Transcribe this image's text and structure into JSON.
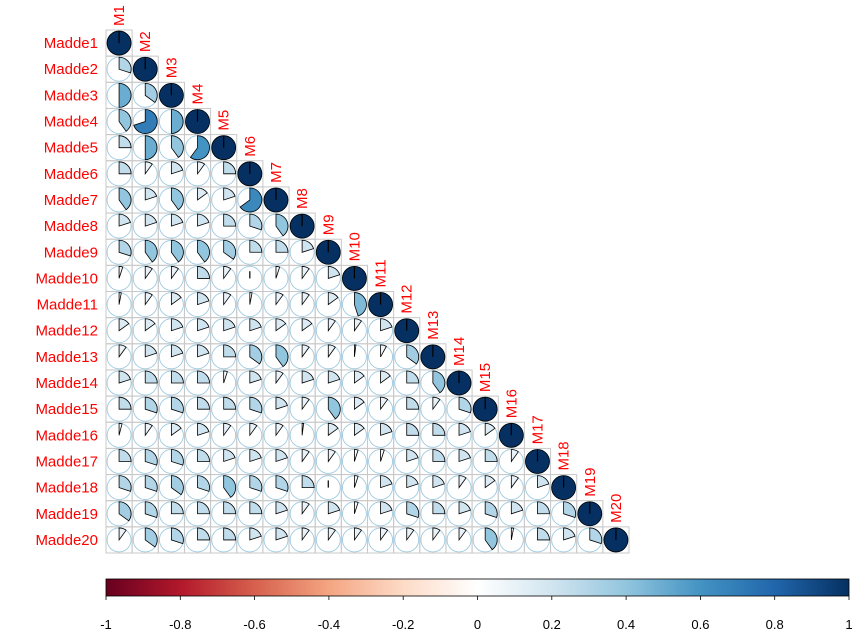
{
  "chart_data": {
    "type": "heatmap",
    "style": "lower-triangle correlogram, pie glyphs",
    "row_labels": [
      "Madde1",
      "Madde2",
      "Madde3",
      "Madde4",
      "Madde5",
      "Madde6",
      "Madde7",
      "Madde8",
      "Madde9",
      "Madde10",
      "Madde11",
      "Madde12",
      "Madde13",
      "Madde14",
      "Madde15",
      "Madde16",
      "Madde17",
      "Madde18",
      "Madde19",
      "Madde20"
    ],
    "col_labels": [
      "M1",
      "M2",
      "M3",
      "M4",
      "M5",
      "M6",
      "M7",
      "M8",
      "M9",
      "M10",
      "M11",
      "M12",
      "M13",
      "M14",
      "M15",
      "M16",
      "M17",
      "M18",
      "M19",
      "M20"
    ],
    "label_color": "#ff0000",
    "colorbar": {
      "range": [
        -1,
        1
      ],
      "ticks": [
        "-1",
        "-0.8",
        "-0.6",
        "-0.4",
        "-0.2",
        "0",
        "0.2",
        "0.4",
        "0.6",
        "0.8",
        "1"
      ],
      "colors": [
        "#67001F",
        "#B2182B",
        "#D6604D",
        "#F4A582",
        "#FDDBC7",
        "#FFFFFF",
        "#D1E5F0",
        "#92C5DE",
        "#4393C3",
        "#2166AC",
        "#053061"
      ]
    },
    "matrix": [
      [
        1
      ],
      [
        0.3,
        1
      ],
      [
        0.5,
        0.35,
        1
      ],
      [
        0.4,
        0.7,
        0.5,
        1
      ],
      [
        0.25,
        0.5,
        0.4,
        0.6,
        1
      ],
      [
        0.25,
        0.1,
        0.2,
        0.1,
        0.25,
        1
      ],
      [
        0.4,
        0.2,
        0.4,
        0.15,
        0.2,
        0.65,
        1
      ],
      [
        0.2,
        0.2,
        0.2,
        0.2,
        0.25,
        0.3,
        0.4,
        1
      ],
      [
        0.3,
        0.4,
        0.4,
        0.4,
        0.35,
        0.25,
        0.25,
        0.2,
        1
      ],
      [
        0.05,
        0.1,
        0.1,
        0.25,
        0.1,
        0.0,
        0.05,
        0.1,
        0.2,
        1
      ],
      [
        0.03,
        0.1,
        0.15,
        0.2,
        0.1,
        0.03,
        0.1,
        0.1,
        0.15,
        0.45,
        1
      ],
      [
        0.15,
        0.15,
        0.2,
        0.2,
        0.2,
        0.2,
        0.15,
        0.15,
        0.1,
        0.1,
        0.2,
        1
      ],
      [
        0.1,
        0.2,
        0.2,
        0.2,
        0.25,
        0.35,
        0.4,
        0.1,
        0.1,
        0.02,
        0.08,
        0.35,
        1
      ],
      [
        0.2,
        0.25,
        0.25,
        0.25,
        0.05,
        0.2,
        0.1,
        0.2,
        0.2,
        0.15,
        0.15,
        0.25,
        0.4,
        1
      ],
      [
        0.25,
        0.3,
        0.3,
        0.25,
        0.25,
        0.3,
        0.2,
        0.1,
        0.4,
        0.15,
        0.1,
        0.25,
        0.1,
        0.3,
        1
      ],
      [
        0.04,
        0.1,
        0.15,
        0.2,
        0.1,
        0.1,
        0.1,
        0.02,
        0.15,
        0.15,
        0.2,
        0.25,
        0.25,
        0.2,
        0.15,
        1
      ],
      [
        0.25,
        0.3,
        0.3,
        0.25,
        0.2,
        0.2,
        0.2,
        0.1,
        0.1,
        0.05,
        0.05,
        0.2,
        0.25,
        0.2,
        0.25,
        0.1,
        1
      ],
      [
        0.3,
        0.3,
        0.35,
        0.3,
        0.4,
        0.3,
        0.3,
        0.25,
        0.0,
        0.05,
        0.2,
        0.2,
        0.2,
        0.1,
        0.15,
        0.1,
        0.2,
        1
      ],
      [
        0.35,
        0.3,
        0.25,
        0.25,
        0.25,
        0.25,
        0.2,
        0.1,
        0.2,
        0.05,
        0.2,
        0.3,
        0.25,
        0.2,
        0.3,
        0.2,
        0.25,
        0.3,
        1
      ],
      [
        0.1,
        0.35,
        0.3,
        0.25,
        0.25,
        0.2,
        0.2,
        0.1,
        0.1,
        0.1,
        0.1,
        0.1,
        0.1,
        0.1,
        0.4,
        0.03,
        0.25,
        0.2,
        0.3,
        1
      ]
    ]
  }
}
